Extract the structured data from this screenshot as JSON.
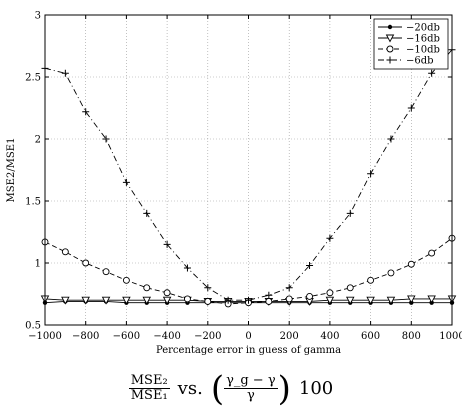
{
  "chart_data": {
    "type": "line",
    "title": "",
    "xlabel": "Percentage error in guess of gamma",
    "ylabel": "MSE2/MSE1",
    "xlim": [
      -1000,
      1000
    ],
    "ylim": [
      0.5,
      3
    ],
    "xticks": [
      -1000,
      -800,
      -600,
      -400,
      -200,
      0,
      200,
      400,
      600,
      800,
      1000
    ],
    "yticks": [
      0.5,
      1,
      1.5,
      2,
      2.5,
      3
    ],
    "yticklabels": [
      "0.5",
      "1",
      "1.5",
      "2",
      "2.5",
      "3"
    ],
    "grid": true,
    "legend_position": "top-right",
    "series": [
      {
        "name": "−20db",
        "marker": "dot",
        "dash": "solid",
        "x": [
          -1000,
          -900,
          -800,
          -700,
          -600,
          -500,
          -400,
          -300,
          -200,
          -100,
          0,
          100,
          200,
          300,
          400,
          500,
          600,
          700,
          800,
          900,
          1000
        ],
        "y": [
          0.68,
          0.69,
          0.69,
          0.69,
          0.68,
          0.68,
          0.68,
          0.68,
          0.68,
          0.68,
          0.68,
          0.68,
          0.68,
          0.68,
          0.68,
          0.68,
          0.68,
          0.68,
          0.68,
          0.68,
          0.68
        ]
      },
      {
        "name": "−16db",
        "marker": "triangle-down",
        "dash": "solid",
        "x": [
          -1000,
          -900,
          -800,
          -700,
          -600,
          -500,
          -400,
          -300,
          -200,
          -100,
          0,
          100,
          200,
          300,
          400,
          500,
          600,
          700,
          800,
          900,
          1000
        ],
        "y": [
          0.71,
          0.7,
          0.7,
          0.7,
          0.7,
          0.7,
          0.7,
          0.7,
          0.69,
          0.69,
          0.69,
          0.69,
          0.69,
          0.69,
          0.7,
          0.7,
          0.7,
          0.7,
          0.71,
          0.71,
          0.71
        ]
      },
      {
        "name": "−10db",
        "marker": "circle",
        "dash": "dashed",
        "x": [
          -1000,
          -900,
          -800,
          -700,
          -600,
          -500,
          -400,
          -300,
          -200,
          -100,
          0,
          100,
          200,
          300,
          400,
          500,
          600,
          700,
          800,
          900,
          1000
        ],
        "y": [
          1.17,
          1.09,
          1.0,
          0.93,
          0.86,
          0.8,
          0.76,
          0.71,
          0.69,
          0.67,
          0.68,
          0.69,
          0.71,
          0.73,
          0.76,
          0.8,
          0.86,
          0.92,
          0.99,
          1.08,
          1.2
        ]
      },
      {
        "name": "−6db",
        "marker": "plus",
        "dash": "dashdot",
        "x": [
          -1000,
          -900,
          -800,
          -700,
          -600,
          -500,
          -400,
          -300,
          -200,
          -100,
          0,
          100,
          200,
          300,
          400,
          500,
          600,
          700,
          800,
          900,
          1000
        ],
        "y": [
          2.57,
          2.53,
          2.22,
          2.0,
          1.65,
          1.4,
          1.15,
          0.96,
          0.8,
          0.7,
          0.7,
          0.74,
          0.8,
          0.98,
          1.2,
          1.4,
          1.72,
          2.0,
          2.25,
          2.53,
          2.72
        ]
      }
    ]
  },
  "caption": {
    "num1": "MSE₂",
    "den1": "MSE₁",
    "vs": "vs.",
    "num2": "γ_g − γ",
    "den2": "γ",
    "factor": "100"
  }
}
